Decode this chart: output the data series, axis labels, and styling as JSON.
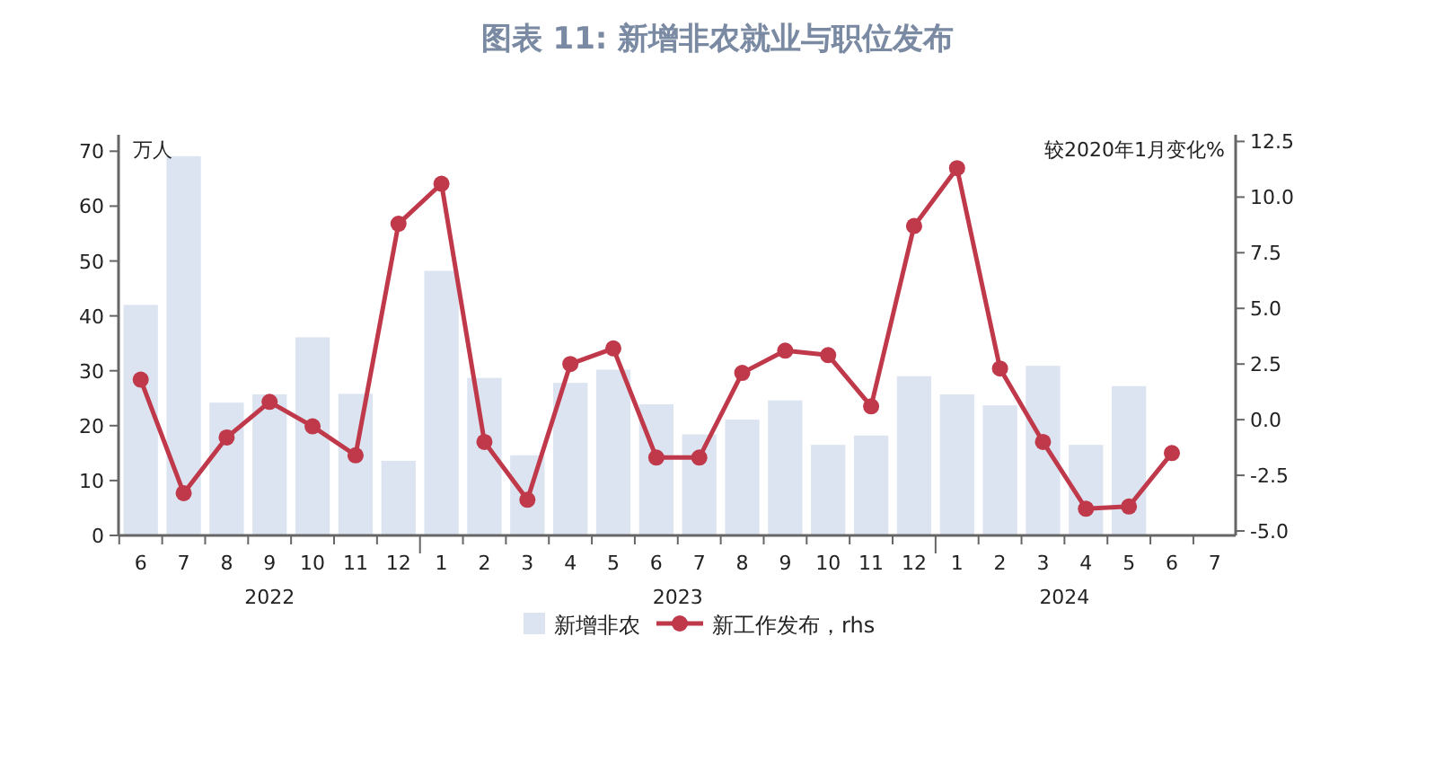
{
  "chart_data": {
    "type": "bar",
    "title": "图表 11: 新增非农就业与职位发布",
    "ylabel": "万人",
    "y2label": "较2020年1月变化%",
    "x": [
      "2022-06",
      "2022-07",
      "2022-08",
      "2022-09",
      "2022-10",
      "2022-11",
      "2022-12",
      "2023-01",
      "2023-02",
      "2023-03",
      "2023-04",
      "2023-05",
      "2023-06",
      "2023-07",
      "2023-08",
      "2023-09",
      "2023-10",
      "2023-11",
      "2023-12",
      "2024-01",
      "2024-02",
      "2024-03",
      "2024-04",
      "2024-05",
      "2024-06"
    ],
    "xlim": [
      "2022-05-16",
      "2024-07-16"
    ],
    "xticks": [
      {
        "value": "2022-06",
        "label": "6"
      },
      {
        "value": "2022-07",
        "label": "7"
      },
      {
        "value": "2022-08",
        "label": "8"
      },
      {
        "value": "2022-09",
        "label": "9"
      },
      {
        "value": "2022-10",
        "label": "10"
      },
      {
        "value": "2022-11",
        "label": "11"
      },
      {
        "value": "2022-12",
        "label": "12"
      },
      {
        "value": "2023-01",
        "label": "1"
      },
      {
        "value": "2023-02",
        "label": "2"
      },
      {
        "value": "2023-03",
        "label": "3"
      },
      {
        "value": "2023-04",
        "label": "4"
      },
      {
        "value": "2023-05",
        "label": "5"
      },
      {
        "value": "2023-06",
        "label": "6"
      },
      {
        "value": "2023-07",
        "label": "7"
      },
      {
        "value": "2023-08",
        "label": "8"
      },
      {
        "value": "2023-09",
        "label": "9"
      },
      {
        "value": "2023-10",
        "label": "10"
      },
      {
        "value": "2023-11",
        "label": "11"
      },
      {
        "value": "2023-12",
        "label": "12"
      },
      {
        "value": "2024-01",
        "label": "1"
      },
      {
        "value": "2024-02",
        "label": "2"
      },
      {
        "value": "2024-03",
        "label": "3"
      },
      {
        "value": "2024-04",
        "label": "4"
      },
      {
        "value": "2024-05",
        "label": "5"
      },
      {
        "value": "2024-06",
        "label": "6"
      },
      {
        "value": "2024-07",
        "label": "7"
      }
    ],
    "annotations": [
      "2022",
      "2023",
      "2024"
    ],
    "series": [
      {
        "name": "新增非农",
        "color": "#dbe4f0",
        "values": [
          42.0,
          69.1,
          24.2,
          25.7,
          36.1,
          25.8,
          13.6,
          48.2,
          28.7,
          14.6,
          27.8,
          30.2,
          23.9,
          18.4,
          21.1,
          24.6,
          16.5,
          18.2,
          29.0,
          25.7,
          23.7,
          30.9,
          16.5,
          27.2,
          null
        ]
      },
      {
        "name": "新工作发布，rhs",
        "type": "line",
        "axis": "y2",
        "color": "#c0394b",
        "marker": "circle",
        "values": [
          1.8,
          -3.3,
          -0.8,
          0.8,
          -0.3,
          -1.6,
          8.8,
          10.6,
          -1.0,
          -3.6,
          2.5,
          3.2,
          -1.7,
          -1.7,
          2.1,
          3.1,
          2.9,
          0.6,
          8.7,
          11.3,
          2.3,
          -1.0,
          -4.0,
          -3.9,
          -1.5
        ]
      }
    ],
    "ylim": [
      0,
      73
    ],
    "yticks": [
      0,
      10,
      20,
      30,
      40,
      50,
      60,
      70
    ],
    "y2lim": [
      -5.2,
      12.8
    ],
    "y2ticks": [
      {
        "value": 12.5,
        "label": "12.5"
      },
      {
        "value": 10,
        "label": "10.0"
      },
      {
        "value": 7.5,
        "label": "7.5"
      },
      {
        "value": 5,
        "label": "5.0"
      },
      {
        "value": 2.5,
        "label": "2.5"
      },
      {
        "value": 0,
        "label": "0.0"
      },
      {
        "value": -2.5,
        "label": "-2.5"
      },
      {
        "value": -5,
        "label": "-5.0"
      }
    ],
    "grid": false,
    "legend": "bottom"
  }
}
